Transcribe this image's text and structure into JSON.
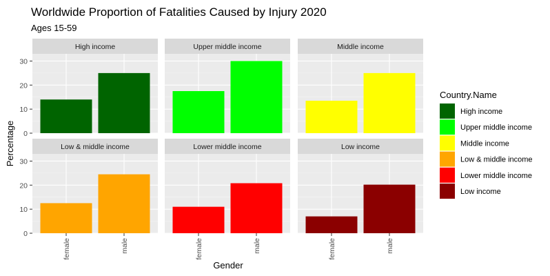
{
  "chart_data": {
    "type": "bar",
    "title": "Worldwide Proportion of Fatalities Caused by Injury 2020",
    "subtitle": "Ages 15-59",
    "xlabel": "Gender",
    "ylabel": "Percentage",
    "categories": [
      "female",
      "male"
    ],
    "ylim": [
      0,
      33
    ],
    "yticks": [
      0,
      10,
      20,
      30
    ],
    "grid": true,
    "legend_title": "Country.Name",
    "legend_position": "right",
    "panels": [
      {
        "name": "High income",
        "color": "#006400",
        "values": [
          14,
          25
        ]
      },
      {
        "name": "Upper middle income",
        "color": "#00ff00",
        "values": [
          17.5,
          30
        ]
      },
      {
        "name": "Middle income",
        "color": "#ffff00",
        "values": [
          13.5,
          25
        ]
      },
      {
        "name": "Low & middle income",
        "color": "#ffa500",
        "values": [
          12.5,
          24.5
        ]
      },
      {
        "name": "Lower middle income",
        "color": "#ff0000",
        "values": [
          11,
          20.8
        ]
      },
      {
        "name": "Low income",
        "color": "#8b0000",
        "values": [
          7,
          20.2
        ]
      }
    ]
  }
}
